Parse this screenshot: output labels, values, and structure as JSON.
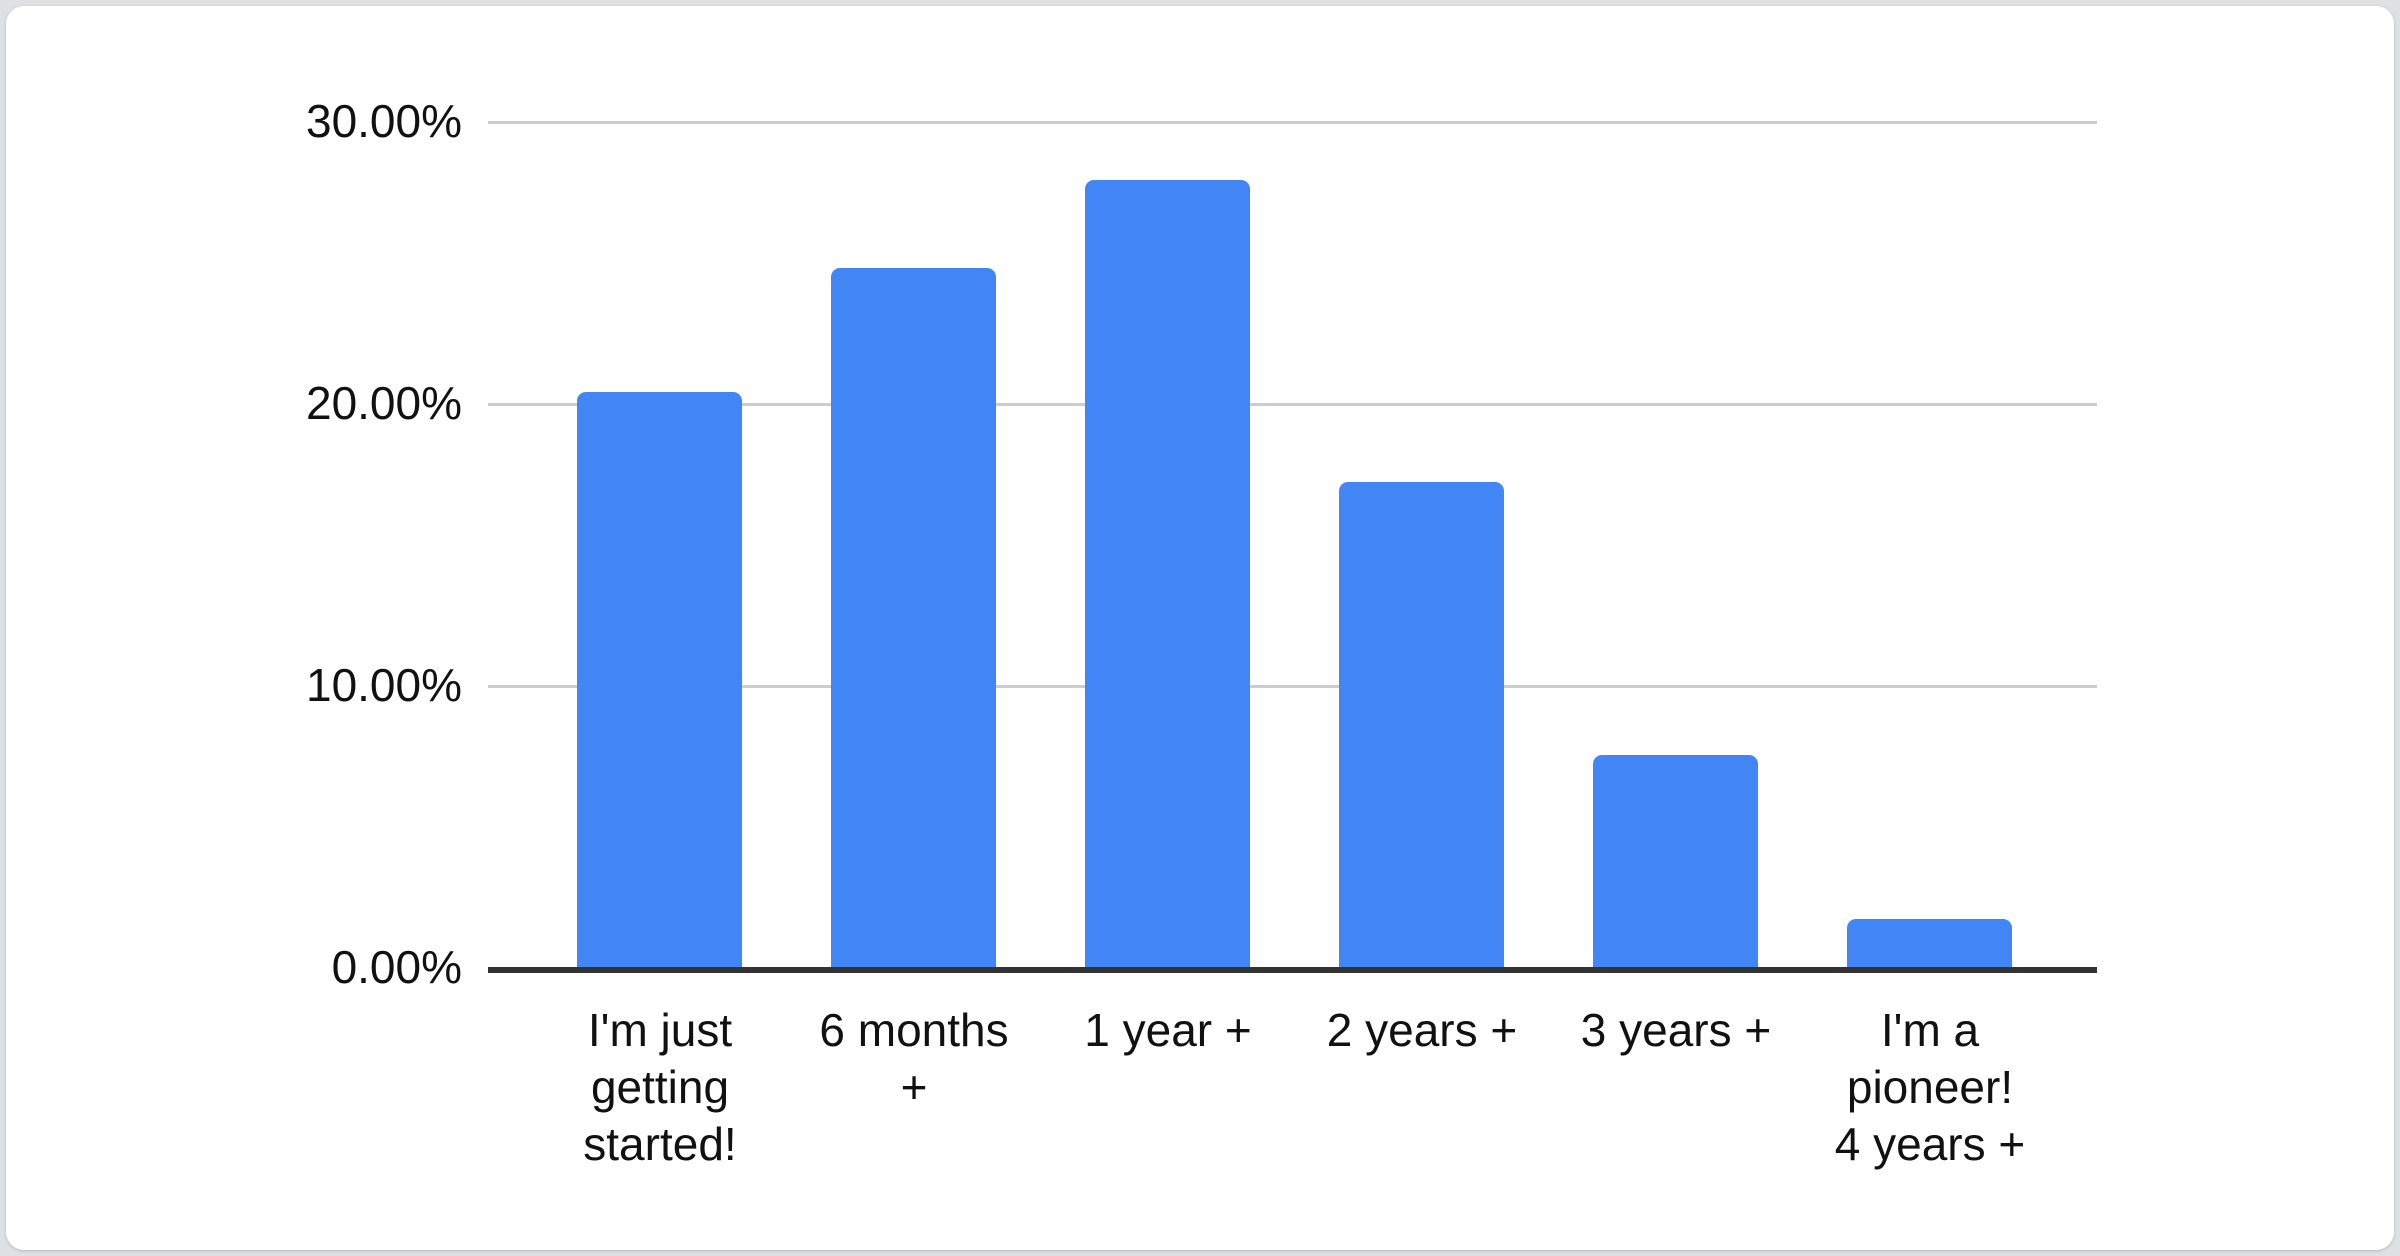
{
  "page": {
    "background": "#dee1e3",
    "card_background": "#ffffff"
  },
  "chart_data": {
    "type": "bar",
    "title": "",
    "xlabel": "",
    "ylabel": "",
    "categories": [
      "I'm just getting started!",
      "6 months +",
      "1 year +",
      "2 years +",
      "3 years +",
      "I'm a pioneer! 4 years +"
    ],
    "categories_display": [
      "I'm just\ngetting\nstarted!",
      "6 months\n+",
      "1 year +",
      "2 years +",
      "3 years +",
      "I'm a\npioneer!\n4 years +"
    ],
    "values": [
      20.4,
      24.8,
      27.9,
      17.2,
      7.5,
      1.7
    ],
    "unit": "%",
    "y_ticks": [
      "30.00%",
      "20.00%",
      "10.00%",
      "0.00%"
    ],
    "ylim": [
      0,
      30
    ],
    "grid": true,
    "legend_position": "none",
    "bar_color": "#4285f4",
    "gridline_color": "#cccccc",
    "axis_color": "#333333",
    "label_color": "#111111"
  }
}
